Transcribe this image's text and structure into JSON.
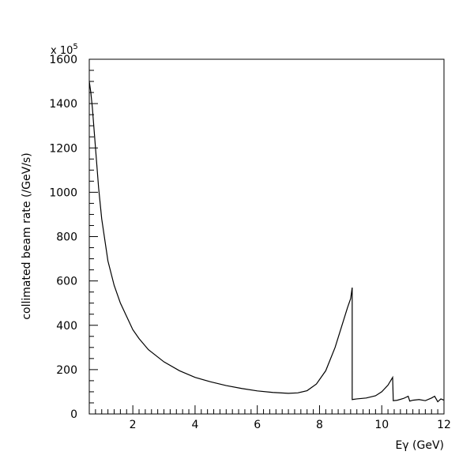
{
  "chart_data": {
    "type": "line",
    "title": "",
    "xlabel": "Eγ (GeV)",
    "ylabel": "collimated beam rate (/GeV/s)",
    "y_multiplier": {
      "base": "x 10",
      "exp": "5"
    },
    "xlim": [
      0.6,
      12
    ],
    "ylim": [
      0,
      1600
    ],
    "x_ticks": [
      2,
      4,
      6,
      8,
      10,
      12
    ],
    "y_ticks": [
      0,
      200,
      400,
      600,
      800,
      1000,
      1200,
      1400,
      1600
    ],
    "grid": false,
    "series": [
      {
        "name": "",
        "x": [
          0.6,
          0.65,
          0.7,
          0.8,
          0.9,
          1.0,
          1.2,
          1.4,
          1.6,
          1.8,
          2.0,
          2.2,
          2.5,
          3.0,
          3.5,
          4.0,
          4.5,
          5.0,
          5.5,
          6.0,
          6.5,
          7.0,
          7.3,
          7.6,
          7.9,
          8.2,
          8.5,
          8.7,
          8.9,
          9.0,
          9.05,
          9.05,
          9.2,
          9.5,
          9.8,
          10.0,
          10.2,
          10.35,
          10.37,
          10.5,
          10.7,
          10.85,
          10.9,
          11.0,
          11.2,
          11.4,
          11.6,
          11.7,
          11.8,
          11.9,
          12.0
        ],
        "y": [
          1500,
          1450,
          1380,
          1200,
          1020,
          880,
          690,
          580,
          500,
          440,
          380,
          340,
          290,
          235,
          195,
          165,
          145,
          128,
          115,
          104,
          97,
          93,
          95,
          105,
          135,
          195,
          300,
          390,
          480,
          520,
          570,
          65,
          68,
          72,
          82,
          100,
          130,
          165,
          60,
          62,
          70,
          80,
          58,
          62,
          65,
          60,
          72,
          80,
          55,
          68,
          62
        ]
      }
    ]
  }
}
